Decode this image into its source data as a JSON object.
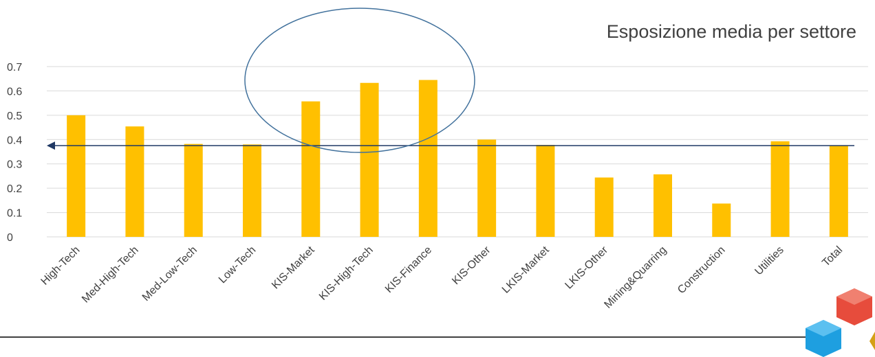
{
  "chart_data": {
    "type": "bar",
    "title": "Esposizione media per settore",
    "categories": [
      "High-Tech",
      "Med-High-Tech",
      "Med-Low-Tech",
      "Low-Tech",
      "KIS-Market",
      "KIS-High-Tech",
      "KIS-Finance",
      "KIS-Other",
      "LKIS-Market",
      "LKIS-Other",
      "Mining&Quarring",
      "Construction",
      "Utilities",
      "Total"
    ],
    "values": [
      0.5,
      0.454,
      0.382,
      0.38,
      0.557,
      0.633,
      0.645,
      0.4,
      0.378,
      0.244,
      0.257,
      0.137,
      0.393,
      0.377
    ],
    "ylim": [
      0,
      0.7
    ],
    "yticks": [
      "0",
      "0.1",
      "0.2",
      "0.3",
      "0.4",
      "0.5",
      "0.6",
      "0.7"
    ],
    "reference_line": 0.375,
    "grid": true,
    "colors": {
      "bar": "#FFC000",
      "grid": "#D9D9D9",
      "reference": "#1F3864",
      "ellipse": "#41719C"
    }
  },
  "decor": {
    "logo": "colored-cubes-logo"
  }
}
